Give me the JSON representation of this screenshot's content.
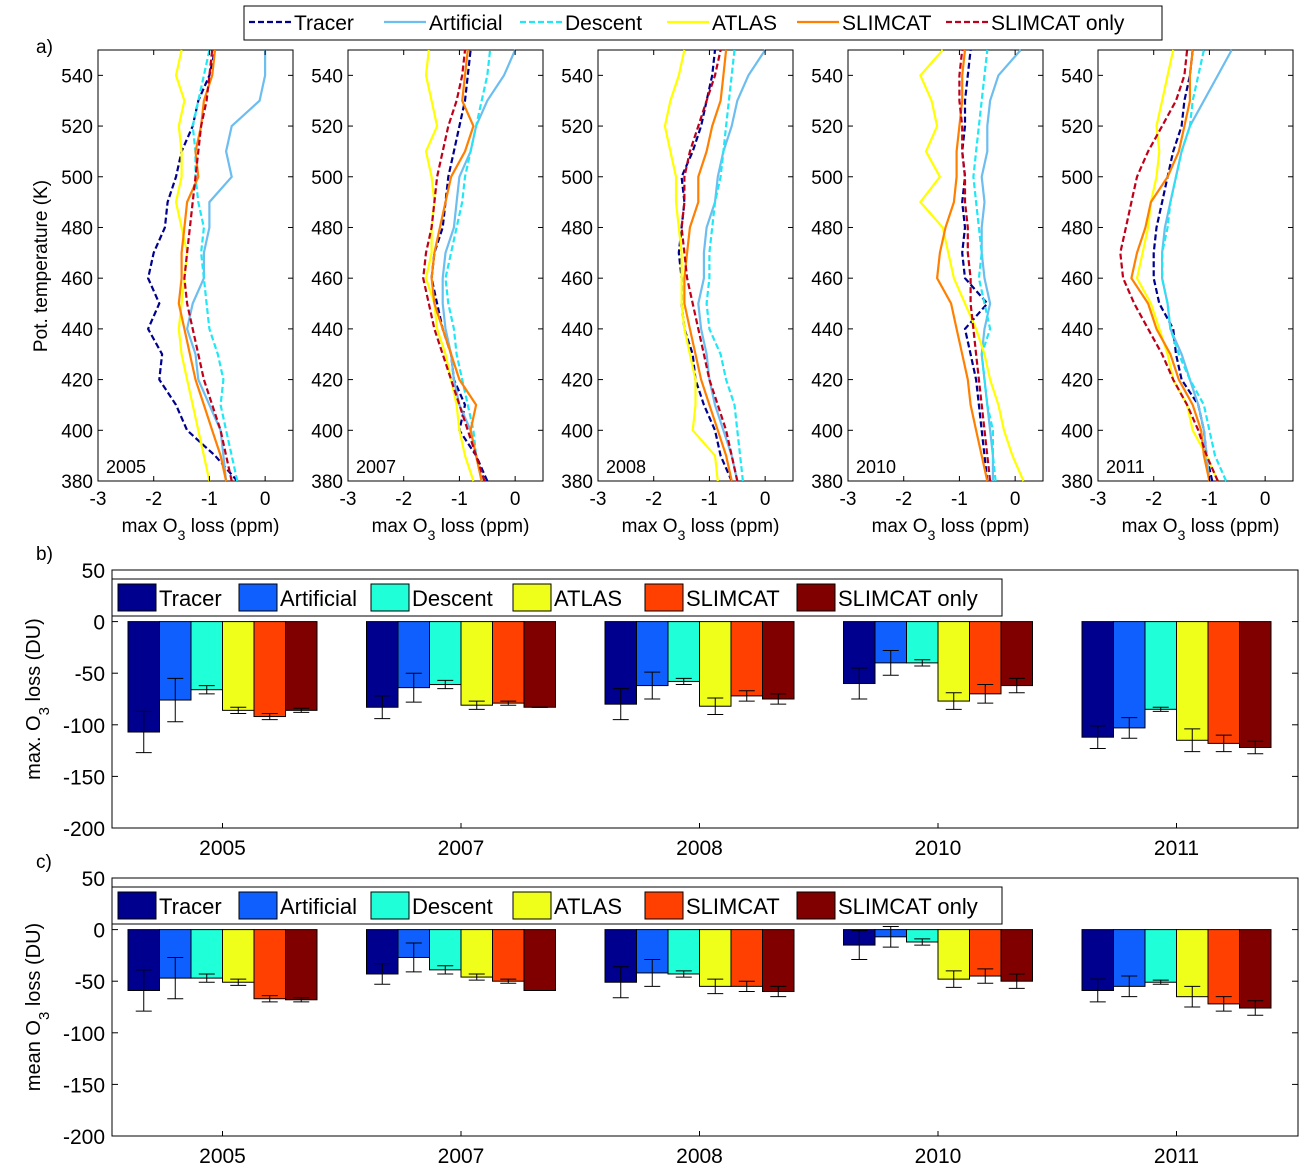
{
  "figure": {
    "panel_labels": [
      "a)",
      "b)",
      "c)"
    ],
    "legend_profiles": [
      "Tracer",
      "Artificial",
      "Descent",
      "ATLAS",
      "SLIMCAT",
      "SLIMCAT only"
    ]
  },
  "colors": {
    "profile_lines": [
      "#00008f",
      "#6cbdf0",
      "#1fe8f4",
      "#ffff00",
      "#ff7f00",
      "#c0001a"
    ],
    "bars": [
      "#00008f",
      "#0f5fff",
      "#1fffd8",
      "#f0ff1a",
      "#ff4000",
      "#800000"
    ]
  },
  "chart_data": [
    {
      "type": "line",
      "panel": "a)",
      "subplots": [
        "2005",
        "2007",
        "2008",
        "2010",
        "2011"
      ],
      "xlabel": "max O3 loss (ppm)",
      "ylabel": "Pot. temperature (K)",
      "xlim": [
        -3,
        0.5
      ],
      "ylim": [
        380,
        550
      ],
      "xticks": [
        -3,
        -2,
        -1,
        0
      ],
      "yticks": [
        380,
        400,
        420,
        440,
        460,
        480,
        500,
        520,
        540
      ],
      "y": [
        380,
        390,
        400,
        410,
        420,
        430,
        440,
        450,
        460,
        470,
        480,
        490,
        500,
        510,
        520,
        530,
        540,
        550
      ],
      "line_styles": [
        "dashed",
        "solid",
        "dashed",
        "solid",
        "solid",
        "dashed"
      ],
      "series": [
        {
          "name": "Tracer",
          "profiles": [
            [
              -0.5,
              -0.9,
              -1.4,
              -1.6,
              -1.9,
              -1.85,
              -2.1,
              -1.9,
              -2.1,
              -2.0,
              -1.8,
              -1.75,
              -1.6,
              -1.5,
              -1.3,
              -1.2,
              -1.0,
              -0.9
            ],
            [
              -0.5,
              -0.7,
              -1.0,
              -0.9,
              -1.1,
              -1.15,
              -1.3,
              -1.4,
              -1.5,
              -1.45,
              -1.3,
              -1.25,
              -1.2,
              -1.1,
              -1.0,
              -0.9,
              -0.85,
              -0.8
            ],
            [
              -0.6,
              -0.8,
              -0.9,
              -1.1,
              -1.25,
              -1.3,
              -1.45,
              -1.5,
              -1.5,
              -1.55,
              -1.5,
              -1.45,
              -1.5,
              -1.3,
              -1.15,
              -1.05,
              -0.95,
              -0.9
            ],
            [
              -0.5,
              -0.55,
              -0.6,
              -0.65,
              -0.7,
              -0.8,
              -0.9,
              -0.5,
              -0.9,
              -0.95,
              -0.9,
              -0.95,
              -0.9,
              -0.95,
              -0.9,
              -0.9,
              -0.85,
              -0.8
            ],
            [
              -0.95,
              -1.05,
              -1.1,
              -1.2,
              -1.5,
              -1.6,
              -1.65,
              -1.9,
              -2.0,
              -2.0,
              -1.95,
              -1.85,
              -1.75,
              -1.65,
              -1.5,
              -1.45,
              -1.35,
              -1.3
            ]
          ]
        },
        {
          "name": "Artificial",
          "profiles": [
            [
              -0.7,
              -0.75,
              -0.8,
              -1.0,
              -1.2,
              -1.25,
              -1.4,
              -1.3,
              -1.1,
              -1.1,
              -1.0,
              -1.0,
              -0.6,
              -0.7,
              -0.6,
              -0.1,
              0.0,
              0.0
            ],
            [
              -0.6,
              -0.7,
              -0.8,
              -1.0,
              -1.1,
              -1.15,
              -1.25,
              -1.3,
              -1.3,
              -1.25,
              -1.1,
              -1.05,
              -1.0,
              -0.8,
              -0.7,
              -0.5,
              -0.2,
              0.0
            ],
            [
              -0.5,
              -0.6,
              -0.75,
              -0.9,
              -1.0,
              -1.05,
              -1.15,
              -1.2,
              -1.1,
              -1.1,
              -1.05,
              -0.9,
              -0.85,
              -0.75,
              -0.6,
              -0.5,
              -0.3,
              0.0
            ],
            [
              -0.4,
              -0.4,
              -0.45,
              -0.5,
              -0.55,
              -0.6,
              -0.55,
              -0.45,
              -0.55,
              -0.6,
              -0.6,
              -0.55,
              -0.6,
              -0.5,
              -0.5,
              -0.45,
              -0.3,
              0.1
            ],
            [
              -1.0,
              -1.05,
              -1.1,
              -1.2,
              -1.35,
              -1.5,
              -1.7,
              -1.75,
              -1.85,
              -1.85,
              -1.8,
              -1.7,
              -1.6,
              -1.5,
              -1.35,
              -1.1,
              -0.85,
              -0.6
            ]
          ]
        },
        {
          "name": "Descent",
          "profiles": [
            [
              -0.5,
              -0.6,
              -0.7,
              -0.8,
              -0.75,
              -0.85,
              -1.0,
              -1.05,
              -1.1,
              -1.15,
              -1.1,
              -1.2,
              -1.25,
              -1.25,
              -1.3,
              -1.2,
              -1.1,
              -1.0
            ],
            [
              -0.6,
              -0.7,
              -0.75,
              -0.85,
              -0.95,
              -1.05,
              -1.1,
              -1.2,
              -1.25,
              -1.15,
              -1.05,
              -0.95,
              -0.9,
              -0.8,
              -0.7,
              -0.6,
              -0.5,
              -0.45
            ],
            [
              -0.4,
              -0.45,
              -0.5,
              -0.55,
              -0.7,
              -0.8,
              -1.0,
              -1.05,
              -1.0,
              -1.0,
              -0.95,
              -0.9,
              -0.8,
              -0.75,
              -0.7,
              -0.65,
              -0.6,
              -0.55
            ],
            [
              -0.35,
              -0.4,
              -0.4,
              -0.5,
              -0.55,
              -0.6,
              -0.45,
              -0.55,
              -0.65,
              -0.6,
              -0.65,
              -0.7,
              -0.75,
              -0.7,
              -0.65,
              -0.6,
              -0.55,
              -0.5
            ],
            [
              -0.7,
              -0.9,
              -1.0,
              -1.1,
              -1.35,
              -1.55,
              -1.7,
              -1.75,
              -1.85,
              -1.85,
              -1.75,
              -1.7,
              -1.6,
              -1.5,
              -1.35,
              -1.3,
              -1.2,
              -1.1
            ]
          ]
        },
        {
          "name": "ATLAS",
          "profiles": [
            [
              -1.0,
              -1.1,
              -1.2,
              -1.3,
              -1.4,
              -1.5,
              -1.55,
              -1.5,
              -1.45,
              -1.4,
              -1.5,
              -1.6,
              -1.5,
              -1.5,
              -1.55,
              -1.45,
              -1.6,
              -1.5
            ],
            [
              -0.75,
              -0.9,
              -1.0,
              -1.05,
              -1.15,
              -1.25,
              -1.4,
              -1.45,
              -1.6,
              -1.5,
              -1.5,
              -1.45,
              -1.5,
              -1.6,
              -1.4,
              -1.5,
              -1.6,
              -1.55
            ],
            [
              -0.85,
              -0.9,
              -1.3,
              -1.25,
              -1.25,
              -1.35,
              -1.45,
              -1.5,
              -1.5,
              -1.5,
              -1.55,
              -1.6,
              -1.6,
              -1.7,
              -1.8,
              -1.7,
              -1.55,
              -1.45
            ],
            [
              0.15,
              -0.05,
              -0.2,
              -0.3,
              -0.45,
              -0.55,
              -0.7,
              -0.9,
              -1.1,
              -1.2,
              -1.3,
              -1.7,
              -1.35,
              -1.6,
              -1.4,
              -1.5,
              -1.7,
              -1.3
            ],
            [
              -0.85,
              -1.05,
              -1.3,
              -1.4,
              -1.65,
              -1.75,
              -1.9,
              -2.05,
              -2.3,
              -2.2,
              -2.1,
              -2.05,
              -1.95,
              -1.9,
              -1.95,
              -1.85,
              -1.75,
              -1.65
            ]
          ]
        },
        {
          "name": "SLIMCAT",
          "profiles": [
            [
              -0.7,
              -0.8,
              -0.95,
              -1.1,
              -1.25,
              -1.35,
              -1.45,
              -1.55,
              -1.5,
              -1.5,
              -1.45,
              -1.4,
              -1.2,
              -1.25,
              -1.15,
              -1.1,
              -0.95,
              -0.9
            ],
            [
              -0.6,
              -0.7,
              -0.8,
              -0.7,
              -1.0,
              -1.15,
              -1.3,
              -1.45,
              -1.5,
              -1.45,
              -1.35,
              -1.25,
              -1.15,
              -0.9,
              -0.75,
              -0.95,
              -0.9,
              -0.85
            ],
            [
              -0.6,
              -0.7,
              -0.85,
              -1.0,
              -1.15,
              -1.25,
              -1.35,
              -1.45,
              -1.45,
              -1.4,
              -1.35,
              -1.2,
              -1.2,
              -1.05,
              -0.95,
              -0.8,
              -0.75,
              -0.7
            ],
            [
              -0.5,
              -0.6,
              -0.7,
              -0.8,
              -0.85,
              -0.95,
              -1.05,
              -1.15,
              -1.4,
              -1.35,
              -1.25,
              -1.1,
              -1.05,
              -1.05,
              -1.0,
              -0.95,
              -0.95,
              -0.9
            ],
            [
              -1.0,
              -1.1,
              -1.15,
              -1.3,
              -1.55,
              -1.7,
              -1.95,
              -2.1,
              -2.4,
              -2.3,
              -2.15,
              -2.05,
              -1.75,
              -1.55,
              -1.45,
              -1.35,
              -1.35,
              -1.3
            ]
          ]
        },
        {
          "name": "SLIMCAT only",
          "profiles": [
            [
              -0.6,
              -0.7,
              -0.8,
              -0.95,
              -1.1,
              -1.2,
              -1.3,
              -1.4,
              -1.45,
              -1.4,
              -1.35,
              -1.3,
              -1.25,
              -1.2,
              -1.15,
              -1.05,
              -1.0,
              -0.95
            ],
            [
              -0.55,
              -0.7,
              -0.85,
              -1.0,
              -1.15,
              -1.3,
              -1.45,
              -1.55,
              -1.65,
              -1.6,
              -1.5,
              -1.45,
              -1.4,
              -1.3,
              -1.2,
              -1.05,
              -0.95,
              -0.9
            ],
            [
              -0.5,
              -0.6,
              -0.7,
              -0.85,
              -1.0,
              -1.1,
              -1.2,
              -1.3,
              -1.4,
              -1.45,
              -1.5,
              -1.45,
              -1.45,
              -1.35,
              -1.2,
              -1.05,
              -0.9,
              -0.8
            ],
            [
              -0.45,
              -0.5,
              -0.55,
              -0.6,
              -0.65,
              -0.7,
              -0.75,
              -0.8,
              -0.8,
              -0.85,
              -0.85,
              -0.9,
              -0.9,
              -0.95,
              -0.95,
              -1.0,
              -1.0,
              -0.95
            ],
            [
              -0.85,
              -1.05,
              -1.2,
              -1.4,
              -1.65,
              -1.85,
              -2.1,
              -2.35,
              -2.55,
              -2.6,
              -2.5,
              -2.4,
              -2.3,
              -2.1,
              -1.85,
              -1.6,
              -1.45,
              -1.4
            ]
          ]
        }
      ]
    },
    {
      "type": "bar",
      "panel": "b)",
      "ylabel": "max. O3 loss (DU)",
      "ylim": [
        -200,
        50
      ],
      "yticks": [
        -200,
        -150,
        -100,
        -50,
        0,
        50
      ],
      "categories": [
        "2005",
        "2007",
        "2008",
        "2010",
        "2011"
      ],
      "legend": "top-left",
      "series": [
        {
          "name": "Tracer",
          "values": [
            -107,
            -83,
            -80,
            -60,
            -112
          ],
          "errors": [
            20,
            11,
            15,
            15,
            11
          ]
        },
        {
          "name": "Artificial",
          "values": [
            -76,
            -64,
            -62,
            -40,
            -103
          ],
          "errors": [
            21,
            14,
            13,
            12,
            10
          ]
        },
        {
          "name": "Descent",
          "values": [
            -66,
            -61,
            -58,
            -40,
            -85
          ],
          "errors": [
            4,
            4,
            3,
            3,
            2
          ]
        },
        {
          "name": "ATLAS",
          "values": [
            -86,
            -81,
            -82,
            -77,
            -115
          ],
          "errors": [
            3,
            4,
            8,
            8,
            11
          ]
        },
        {
          "name": "SLIMCAT",
          "values": [
            -92,
            -79,
            -72,
            -70,
            -118
          ],
          "errors": [
            3,
            2,
            5,
            9,
            8
          ]
        },
        {
          "name": "SLIMCAT only",
          "values": [
            -86,
            -83,
            -75,
            -62,
            -122
          ],
          "errors": [
            2,
            0,
            5,
            7,
            6
          ]
        }
      ]
    },
    {
      "type": "bar",
      "panel": "c)",
      "ylabel": "mean O3 loss (DU)",
      "ylim": [
        -200,
        50
      ],
      "yticks": [
        -200,
        -150,
        -100,
        -50,
        0,
        50
      ],
      "categories": [
        "2005",
        "2007",
        "2008",
        "2010",
        "2011"
      ],
      "legend": "top-left",
      "series": [
        {
          "name": "Tracer",
          "values": [
            -59,
            -43,
            -51,
            -15,
            -59
          ],
          "errors": [
            20,
            10,
            15,
            14,
            11
          ]
        },
        {
          "name": "Artificial",
          "values": [
            -47,
            -27,
            -42,
            -7,
            -55
          ],
          "errors": [
            20,
            14,
            13,
            10,
            10
          ]
        },
        {
          "name": "Descent",
          "values": [
            -47,
            -39,
            -43,
            -12,
            -51
          ],
          "errors": [
            4,
            4,
            3,
            3,
            2
          ]
        },
        {
          "name": "ATLAS",
          "values": [
            -51,
            -46,
            -55,
            -48,
            -65
          ],
          "errors": [
            3,
            3,
            7,
            8,
            10
          ]
        },
        {
          "name": "SLIMCAT",
          "values": [
            -67,
            -50,
            -55,
            -45,
            -72
          ],
          "errors": [
            3,
            2,
            5,
            7,
            7
          ]
        },
        {
          "name": "SLIMCAT only",
          "values": [
            -68,
            -59,
            -60,
            -50,
            -76
          ],
          "errors": [
            2,
            0,
            5,
            7,
            7
          ]
        }
      ]
    }
  ]
}
